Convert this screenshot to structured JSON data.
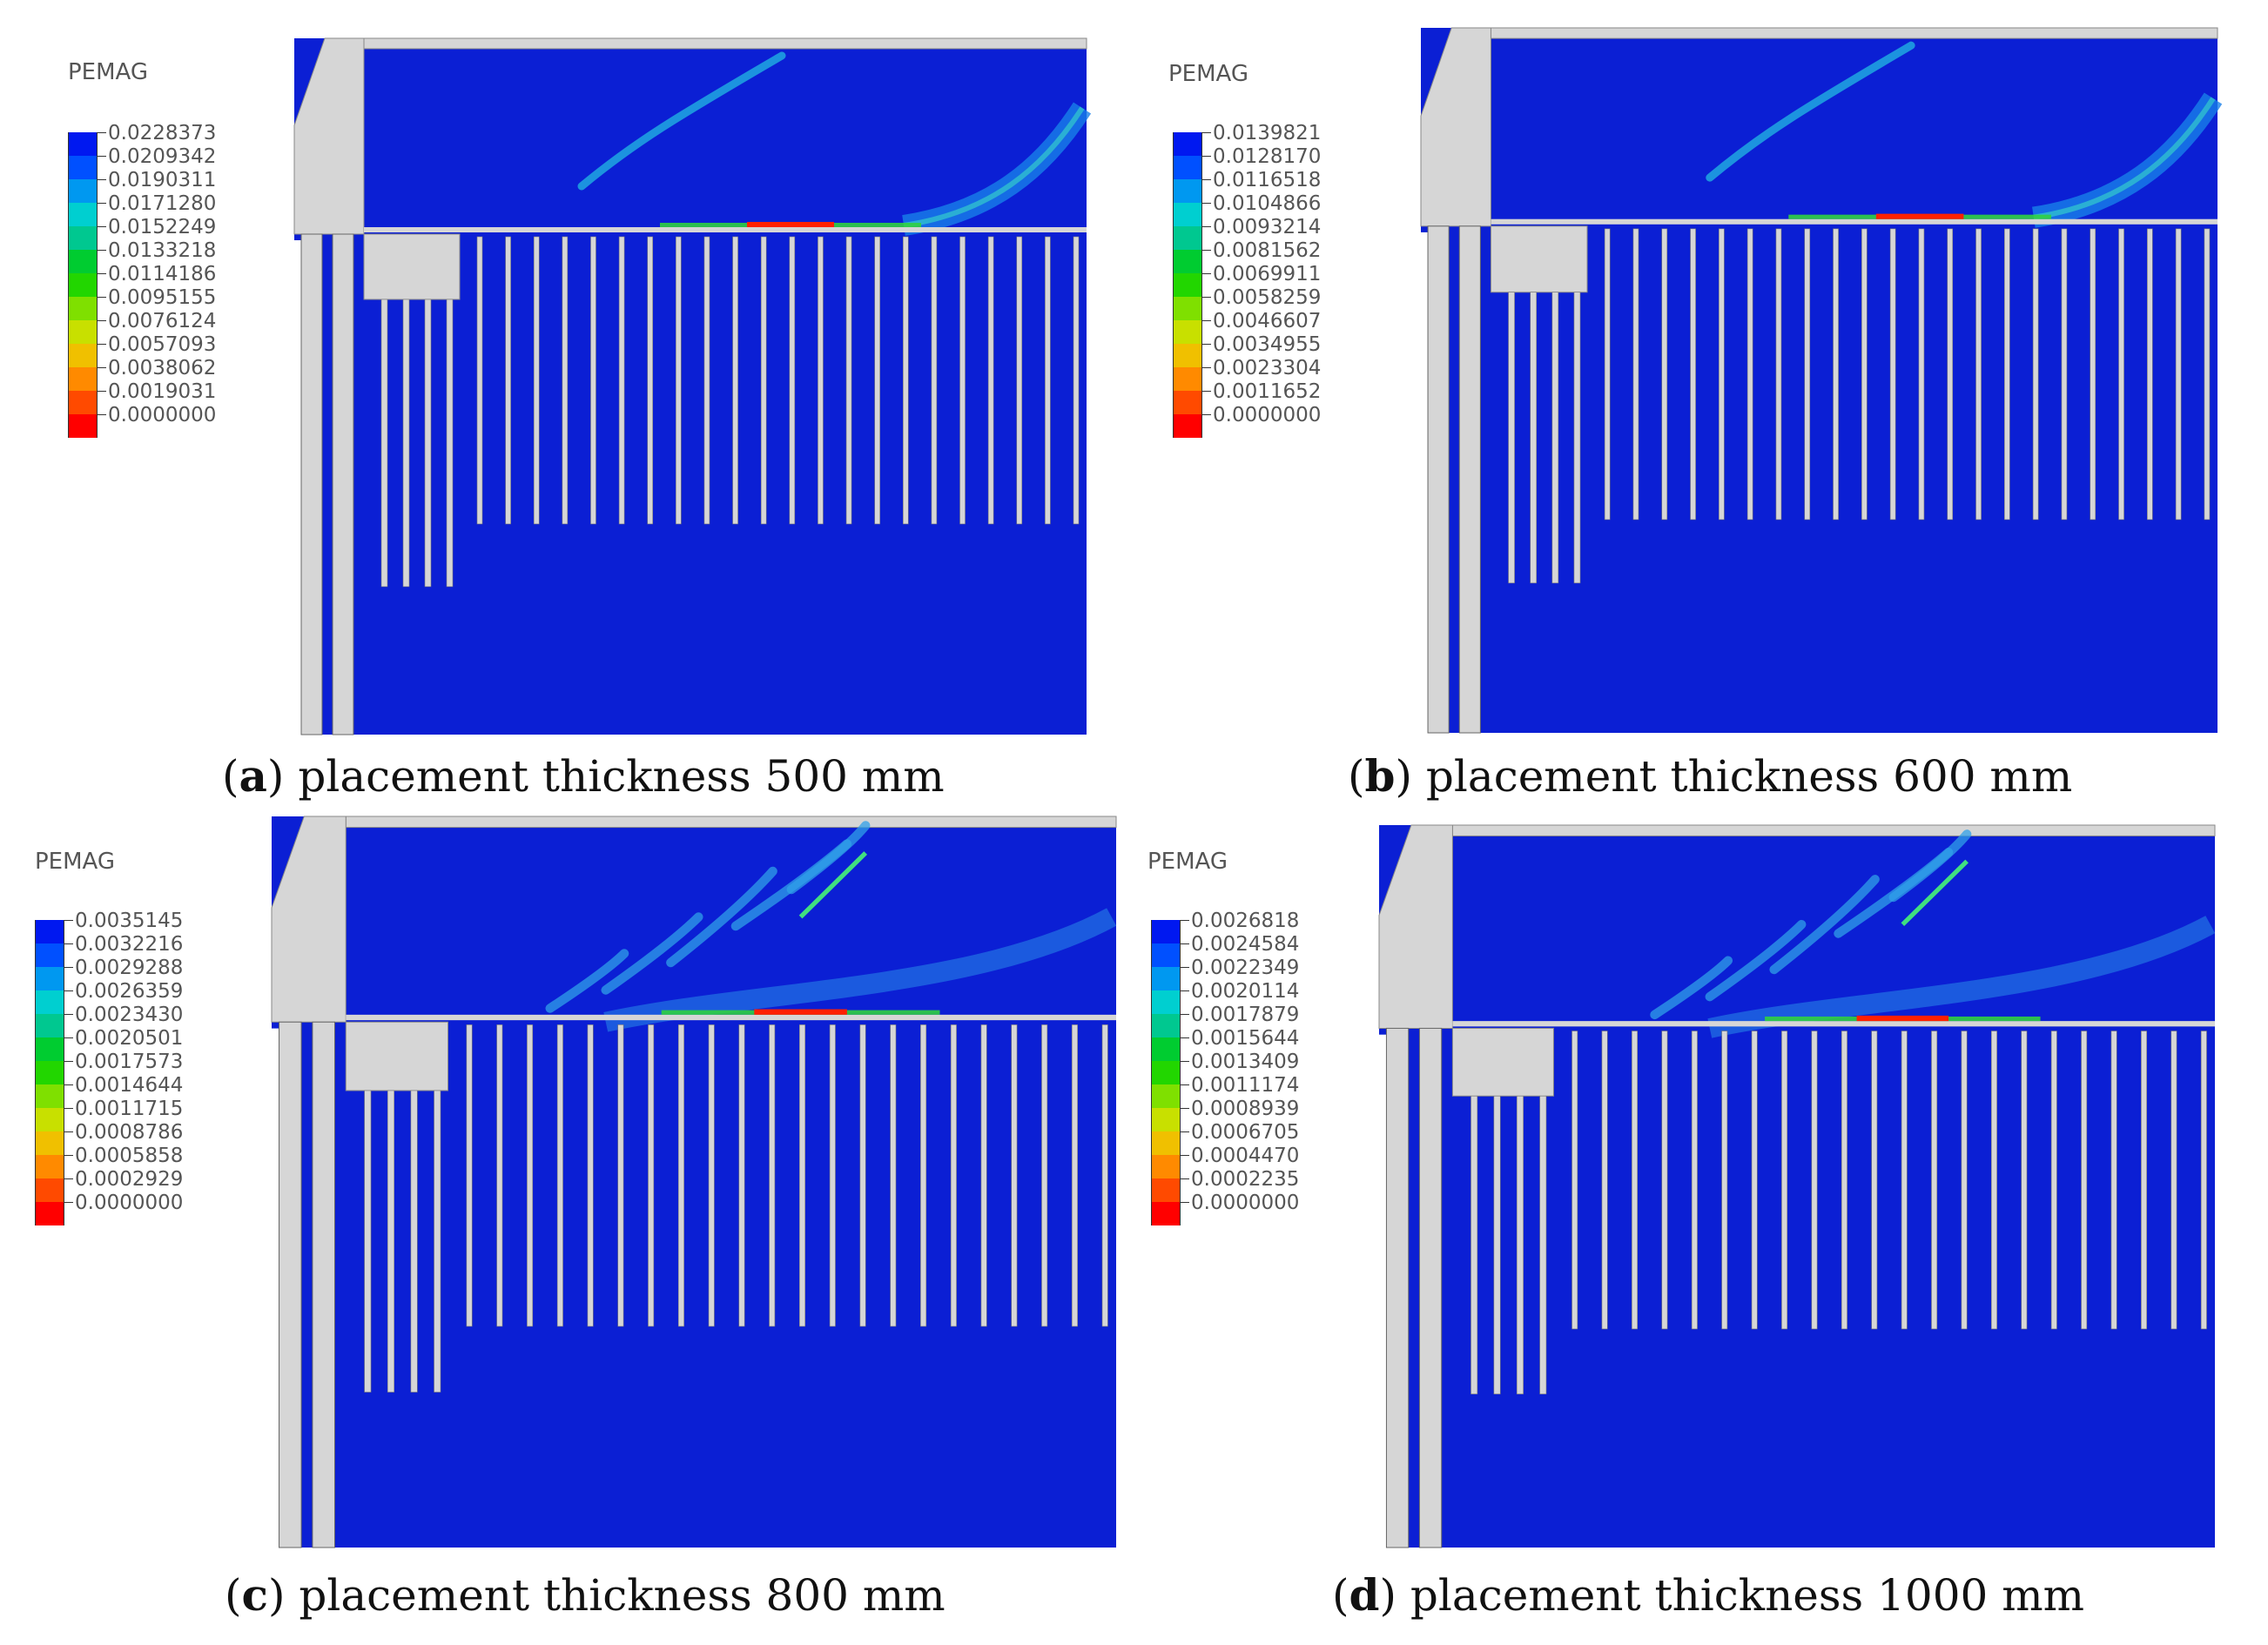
{
  "legend_title": "PEMAG",
  "colors": {
    "soil": "#0b1fd4",
    "structure": "#d6d6d6",
    "colorbar": [
      "#0018f0",
      "#0050ff",
      "#0098f0",
      "#00cfd0",
      "#00c890",
      "#00cc30",
      "#22d600",
      "#7fe000",
      "#c8e000",
      "#f0c000",
      "#ff8a00",
      "#ff4a00",
      "#ff0000"
    ]
  },
  "panels": [
    {
      "id": "a",
      "letter": "a",
      "caption": "placement thickness 500 mm",
      "legend_values": [
        "0.0228373",
        "0.0209342",
        "0.0190311",
        "0.0171280",
        "0.0152249",
        "0.0133218",
        "0.0114186",
        "0.0095155",
        "0.0076124",
        "0.0057093",
        "0.0038062",
        "0.0019031",
        "0.0000000"
      ]
    },
    {
      "id": "b",
      "letter": "b",
      "caption": "placement thickness 600 mm",
      "legend_values": [
        "0.0139821",
        "0.0128170",
        "0.0116518",
        "0.0104866",
        "0.0093214",
        "0.0081562",
        "0.0069911",
        "0.0058259",
        "0.0046607",
        "0.0034955",
        "0.0023304",
        "0.0011652",
        "0.0000000"
      ]
    },
    {
      "id": "c",
      "letter": "c",
      "caption": "placement thickness 800 mm",
      "legend_values": [
        "0.0035145",
        "0.0032216",
        "0.0029288",
        "0.0026359",
        "0.0023430",
        "0.0020501",
        "0.0017573",
        "0.0014644",
        "0.0011715",
        "0.0008786",
        "0.0005858",
        "0.0002929",
        "0.0000000"
      ]
    },
    {
      "id": "d",
      "letter": "d",
      "caption": "placement thickness 1000 mm",
      "legend_values": [
        "0.0026818",
        "0.0024584",
        "0.0022349",
        "0.0020114",
        "0.0017879",
        "0.0015644",
        "0.0013409",
        "0.0011174",
        "0.0008939",
        "0.0006705",
        "0.0004470",
        "0.0002235",
        "0.0000000"
      ]
    }
  ]
}
